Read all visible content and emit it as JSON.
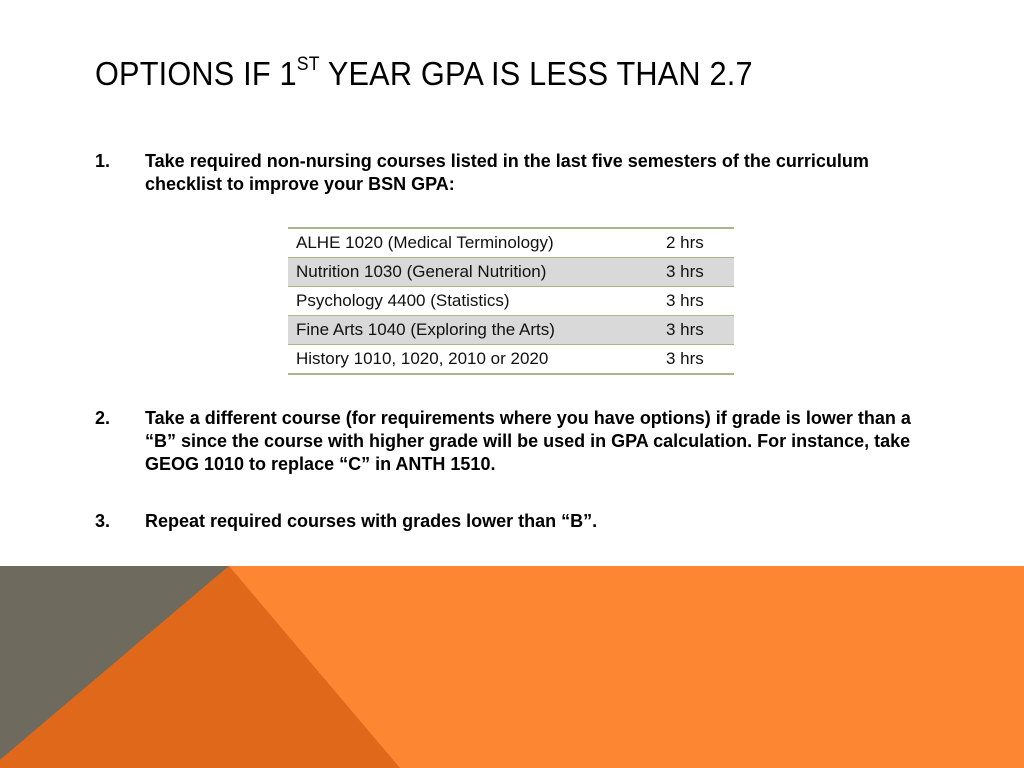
{
  "slide": {
    "title_main": "OPTIONS IF 1",
    "title_sup": "ST",
    "title_rest": " YEAR GPA IS LESS THAN 2.7",
    "items": [
      {
        "num": "1.",
        "text": "Take required non-nursing courses listed in the last five semesters of the curriculum checklist to improve your BSN GPA:"
      },
      {
        "num": "2.",
        "text": "Take a different course (for requirements where you have options) if grade is lower than a “B” since the course with higher grade will be used in GPA calculation.   For instance, take GEOG 1010 to replace “C” in ANTH 1510."
      },
      {
        "num": "3.",
        "text": "Repeat required courses with grades lower than “B”."
      }
    ],
    "table": {
      "rows": [
        {
          "course": "ALHE 1020 (Medical Terminology)",
          "hours": "2 hrs"
        },
        {
          "course": "Nutrition 1030 (General Nutrition)",
          "hours": "3 hrs"
        },
        {
          "course": "Psychology 4400 (Statistics)",
          "hours": "3 hrs"
        },
        {
          "course": "Fine Arts 1040 (Exploring the Arts)",
          "hours": "3 hrs"
        },
        {
          "course": "History 1010, 1020, 2010 or 2020",
          "hours": "3 hrs"
        }
      ]
    },
    "colors": {
      "orange": "#fd8633",
      "dark_orange": "#e0681b",
      "gray": "#6e6a5e",
      "table_rule": "#a9b58a",
      "row_shade": "#d9d9d9"
    }
  }
}
